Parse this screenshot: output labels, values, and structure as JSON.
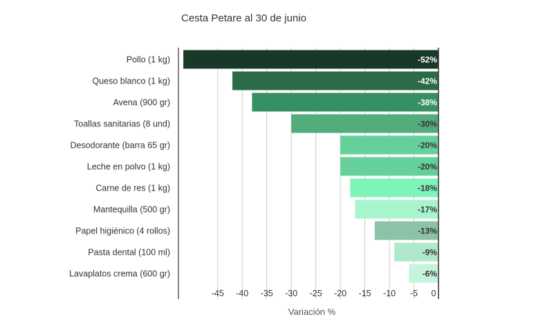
{
  "chart_data": {
    "type": "bar",
    "orientation": "horizontal",
    "title": "Cesta Petare al 30 de junio",
    "xlabel": "Variación %",
    "ylabel": "",
    "categories": [
      "Pollo (1 kg)",
      "Queso blanco (1 kg)",
      "Avena (900 gr)",
      "Toallas sanitarias (8 und)",
      "Desodorante (barra 65 gr)",
      "Leche en polvo (1 kg)",
      "Carne de res (1 kg)",
      "Mantequilla (500 gr)",
      "Papel higiénico (4 rollos)",
      "Pasta dental (100 ml)",
      "Lavaplatos crema (600 gr)"
    ],
    "values": [
      -52,
      -42,
      -38,
      -30,
      -20,
      -20,
      -18,
      -17,
      -13,
      -9,
      -6
    ],
    "data_labels": [
      "-52%",
      "-42%",
      "-38%",
      "-30%",
      "-20%",
      "-20%",
      "-18%",
      "-17%",
      "-13%",
      "-9%",
      "-6%"
    ],
    "bar_colors": [
      "#183927",
      "#2c6b47",
      "#369063",
      "#53ac7c",
      "#66d09b",
      "#66d09b",
      "#7ff4b9",
      "#a8f5cd",
      "#8cc3a7",
      "#afe8ca",
      "#c6f3db"
    ],
    "label_colors": [
      "#ffffff",
      "#ffffff",
      "#ffffff",
      "#333333",
      "#333333",
      "#333333",
      "#333333",
      "#333333",
      "#333333",
      "#333333",
      "#333333"
    ],
    "xlim": [
      -53,
      0
    ],
    "xticks": [
      -45,
      -40,
      -35,
      -30,
      -25,
      -20,
      -15,
      -10,
      -5,
      0
    ],
    "grid": true,
    "legend": "none"
  }
}
